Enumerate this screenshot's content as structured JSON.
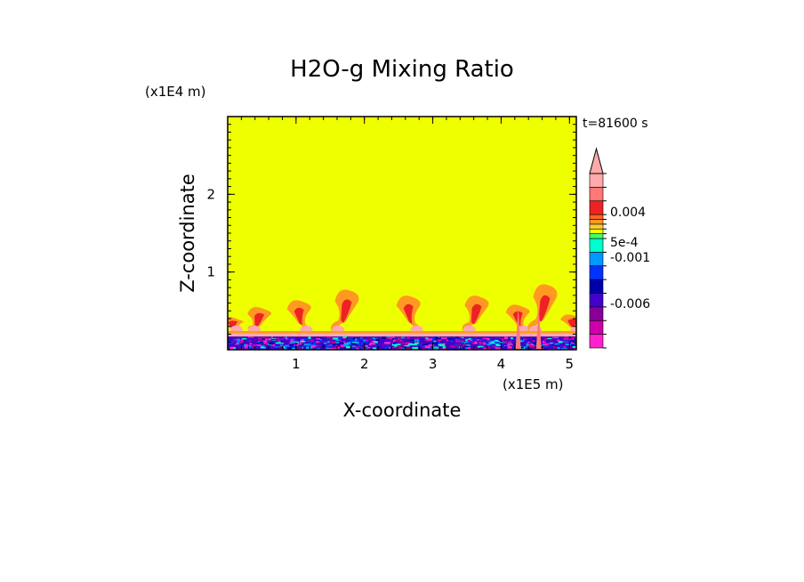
{
  "chart_data": {
    "type": "heatmap",
    "title": "H2O-g Mixing Ratio",
    "xlabel": "X-coordinate",
    "ylabel": "Z-coordinate",
    "x_unit": "(x1E5 m)",
    "y_unit": "(x1E4 m)",
    "time_label": "t=81600 s",
    "xlim": [
      0,
      5.1
    ],
    "ylim": [
      0,
      3.0
    ],
    "x_ticks": [
      1,
      2,
      3,
      4,
      5
    ],
    "y_ticks": [
      1,
      2
    ],
    "background_level_color": "#eeff00",
    "plumes": [
      {
        "x": 0.08,
        "top": 0.42
      },
      {
        "x": 0.47,
        "top": 0.55
      },
      {
        "x": 1.05,
        "top": 0.64
      },
      {
        "x": 1.75,
        "top": 0.78
      },
      {
        "x": 2.65,
        "top": 0.7
      },
      {
        "x": 3.65,
        "top": 0.7
      },
      {
        "x": 4.25,
        "top": 0.58
      },
      {
        "x": 4.65,
        "top": 0.85
      },
      {
        "x": 5.05,
        "top": 0.45
      }
    ],
    "colorbar": {
      "colors": [
        "#ff22cc",
        "#cc00aa",
        "#880099",
        "#4400cc",
        "#0000aa",
        "#0033ff",
        "#0099ff",
        "#00ffcc",
        "#44ff66",
        "#eeff00",
        "#ffcc33",
        "#ff9922",
        "#ff6622",
        "#ee2222",
        "#ff7777",
        "#ffaaaa"
      ],
      "labels": [
        {
          "text": "0.004",
          "level": 0.004
        },
        {
          "text": "5e-4",
          "level": 0.0005
        },
        {
          "text": "-0.001",
          "level": -0.001
        },
        {
          "text": "-0.006",
          "level": -0.006
        }
      ]
    }
  }
}
